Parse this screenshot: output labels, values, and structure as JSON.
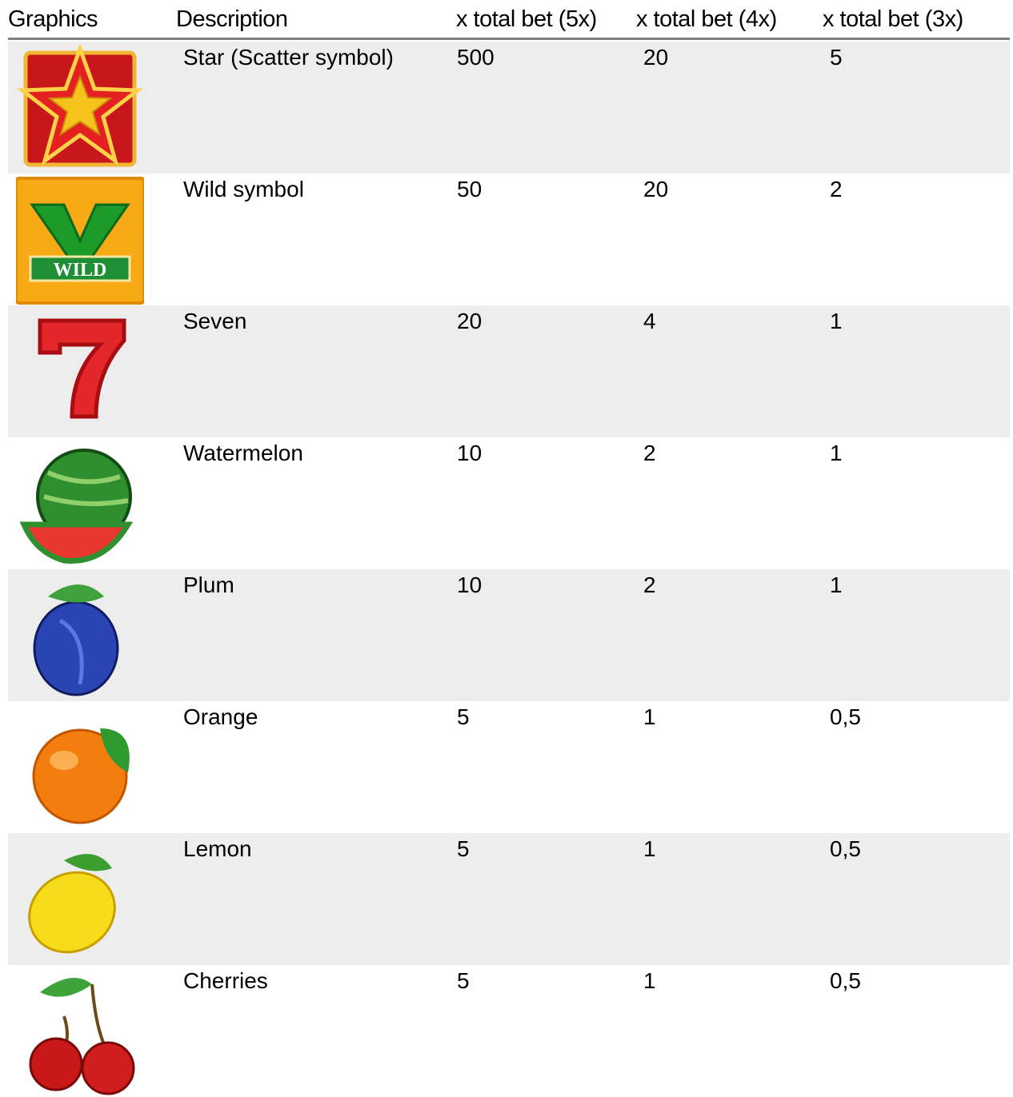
{
  "table": {
    "headers": [
      "Graphics",
      "Description",
      "x total bet (5x)",
      "x total bet (4x)",
      "x total bet (3x)"
    ],
    "rows": [
      {
        "description": "Star (Scatter symbol)",
        "values": [
          "500",
          "20",
          "5"
        ]
      },
      {
        "description": "Wild symbol",
        "values": [
          "50",
          "20",
          "2"
        ],
        "icon_label": "WILD"
      },
      {
        "description": "Seven",
        "values": [
          "20",
          "4",
          "1"
        ]
      },
      {
        "description": "Watermelon",
        "values": [
          "10",
          "2",
          "1"
        ]
      },
      {
        "description": "Plum",
        "values": [
          "10",
          "2",
          "1"
        ]
      },
      {
        "description": "Orange",
        "values": [
          "5",
          "1",
          "0,5"
        ]
      },
      {
        "description": "Lemon",
        "values": [
          "5",
          "1",
          "0,5"
        ]
      },
      {
        "description": "Cherries",
        "values": [
          "5",
          "1",
          "0,5"
        ]
      }
    ]
  }
}
